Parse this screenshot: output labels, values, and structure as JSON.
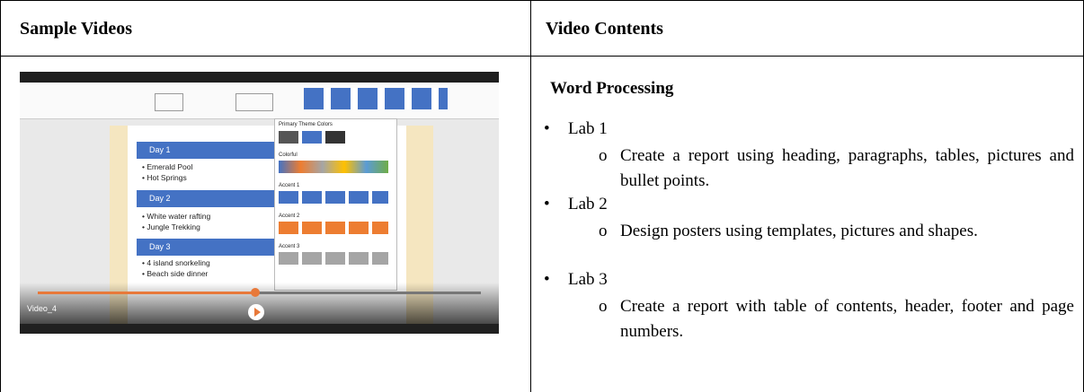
{
  "table": {
    "header": [
      "Sample Videos",
      "Video Contents"
    ],
    "video": {
      "title": "Video_4",
      "cards": [
        {
          "day": "Day 1",
          "items": [
            "Emerald Pool",
            "Hot Springs"
          ]
        },
        {
          "day": "Day 2",
          "items": [
            "White water rafting",
            "Jungle Trekking"
          ]
        },
        {
          "day": "Day 3",
          "items": [
            "4 island snorkeling",
            "Beach side dinner"
          ]
        }
      ],
      "panel": [
        "Primary Theme Colors",
        "Colorful",
        "Accent 1",
        "Accent 2",
        "Accent 3"
      ]
    },
    "contents": {
      "heading": "Word Processing",
      "items": [
        {
          "label": "Lab 1",
          "details": [
            "Create a report using heading, paragraphs, tables, pictures and bullet points."
          ]
        },
        {
          "label": "Lab 2",
          "details": [
            "Design posters using templates, pictures and shapes."
          ]
        },
        {
          "label": "Lab 3",
          "details": [
            "Create a report with table of contents, header, footer and page numbers."
          ]
        }
      ]
    }
  }
}
